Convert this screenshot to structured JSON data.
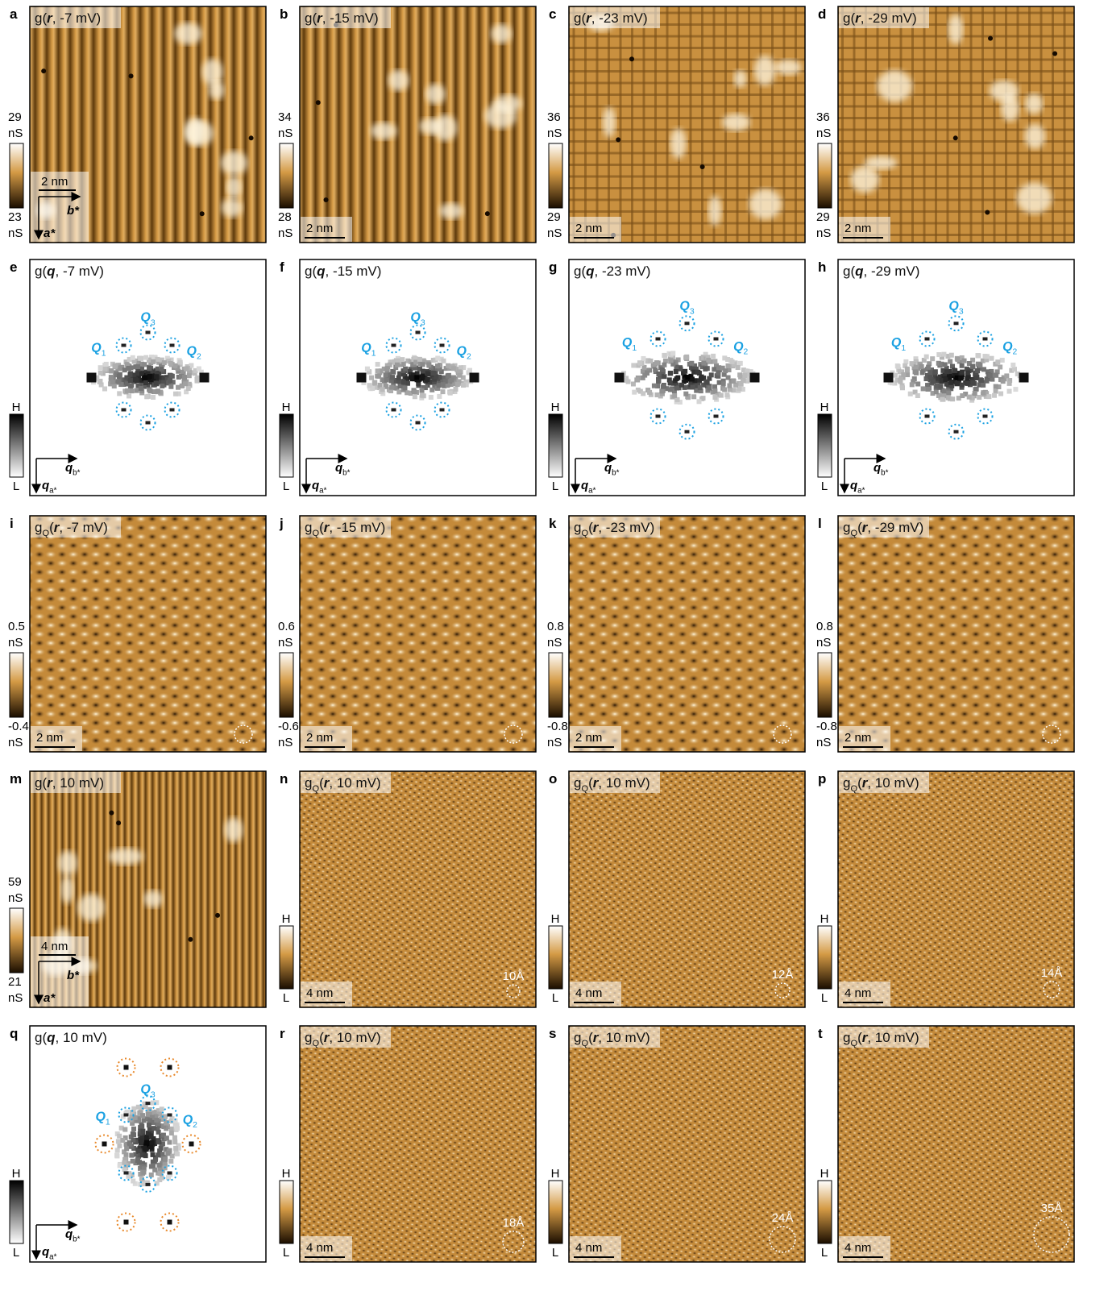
{
  "panels": [
    {
      "letter": "a",
      "kind": "topo-stripes",
      "title": [
        {
          "text": "g("
        },
        {
          "text": "r",
          "style": "var"
        },
        {
          "text": ", -7 mV)"
        }
      ],
      "colorbar": {
        "top": "29",
        "top_unit": "nS",
        "bottom": "23",
        "bottom_unit": "nS"
      },
      "scalebar": "2 nm",
      "axes": {
        "h": [
          {
            "text": "b*",
            "style": "var"
          }
        ],
        "v": [
          {
            "text": "a*",
            "style": "var"
          }
        ]
      }
    },
    {
      "letter": "b",
      "kind": "topo-stripes",
      "title": [
        {
          "text": "g("
        },
        {
          "text": "r",
          "style": "var"
        },
        {
          "text": ", -15 mV)"
        }
      ],
      "colorbar": {
        "top": "34",
        "top_unit": "nS",
        "bottom": "28",
        "bottom_unit": "nS"
      },
      "scalebar": "2 nm"
    },
    {
      "letter": "c",
      "kind": "topo-grid",
      "title": [
        {
          "text": "g("
        },
        {
          "text": "r",
          "style": "var"
        },
        {
          "text": ", -23 mV)"
        }
      ],
      "colorbar": {
        "top": "36",
        "top_unit": "nS",
        "bottom": "29",
        "bottom_unit": "nS"
      },
      "scalebar": "2 nm"
    },
    {
      "letter": "d",
      "kind": "topo-grid",
      "title": [
        {
          "text": "g("
        },
        {
          "text": "r",
          "style": "var"
        },
        {
          "text": ", -29 mV)"
        }
      ],
      "colorbar": {
        "top": "36",
        "top_unit": "nS",
        "bottom": "29",
        "bottom_unit": "nS"
      },
      "scalebar": "2 nm"
    },
    {
      "letter": "e",
      "kind": "fft",
      "title": [
        {
          "text": "g("
        },
        {
          "text": "q",
          "style": "var"
        },
        {
          "text": ", -7 mV)"
        }
      ],
      "colorbar": {
        "top": "H",
        "bottom": "L"
      },
      "axes": {
        "h": [
          {
            "text": "q",
            "style": "var"
          },
          {
            "text": "b*",
            "style": "sub"
          }
        ],
        "v": [
          {
            "text": "q",
            "style": "var"
          },
          {
            "text": "a*",
            "style": "sub"
          }
        ]
      },
      "q_labels": [
        [
          {
            "text": "Q",
            "style": "var"
          },
          {
            "text": "1",
            "style": "sub"
          }
        ],
        [
          {
            "text": "Q",
            "style": "var"
          },
          {
            "text": "2",
            "style": "sub"
          }
        ],
        [
          {
            "text": "Q",
            "style": "var"
          },
          {
            "text": "3",
            "style": "sub"
          }
        ]
      ]
    },
    {
      "letter": "f",
      "kind": "fft",
      "title": [
        {
          "text": "g("
        },
        {
          "text": "q",
          "style": "var"
        },
        {
          "text": ", -15 mV)"
        }
      ],
      "colorbar": {
        "top": "H",
        "bottom": "L"
      },
      "axes": {
        "h": [
          {
            "text": "q",
            "style": "var"
          },
          {
            "text": "b*",
            "style": "sub"
          }
        ],
        "v": [
          {
            "text": "q",
            "style": "var"
          },
          {
            "text": "a*",
            "style": "sub"
          }
        ]
      },
      "q_labels": [
        [
          {
            "text": "Q",
            "style": "var"
          },
          {
            "text": "1",
            "style": "sub"
          }
        ],
        [
          {
            "text": "Q",
            "style": "var"
          },
          {
            "text": "2",
            "style": "sub"
          }
        ],
        [
          {
            "text": "Q",
            "style": "var"
          },
          {
            "text": "3",
            "style": "sub"
          }
        ]
      ]
    },
    {
      "letter": "g",
      "kind": "fft",
      "title": [
        {
          "text": "g("
        },
        {
          "text": "q",
          "style": "var"
        },
        {
          "text": ", -23 mV)"
        }
      ],
      "colorbar": {
        "top": "H",
        "bottom": "L"
      },
      "axes": {
        "h": [
          {
            "text": "q",
            "style": "var"
          },
          {
            "text": "b*",
            "style": "sub"
          }
        ],
        "v": [
          {
            "text": "q",
            "style": "var"
          },
          {
            "text": "a*",
            "style": "sub"
          }
        ]
      },
      "q_labels": [
        [
          {
            "text": "Q",
            "style": "var"
          },
          {
            "text": "1",
            "style": "sub"
          }
        ],
        [
          {
            "text": "Q",
            "style": "var"
          },
          {
            "text": "2",
            "style": "sub"
          }
        ],
        [
          {
            "text": "Q",
            "style": "var"
          },
          {
            "text": "3",
            "style": "sub"
          }
        ]
      ]
    },
    {
      "letter": "h",
      "kind": "fft",
      "title": [
        {
          "text": "g("
        },
        {
          "text": "q",
          "style": "var"
        },
        {
          "text": ", -29 mV)"
        }
      ],
      "colorbar": {
        "top": "H",
        "bottom": "L"
      },
      "axes": {
        "h": [
          {
            "text": "q",
            "style": "var"
          },
          {
            "text": "b*",
            "style": "sub"
          }
        ],
        "v": [
          {
            "text": "q",
            "style": "var"
          },
          {
            "text": "a*",
            "style": "sub"
          }
        ]
      },
      "q_labels": [
        [
          {
            "text": "Q",
            "style": "var"
          },
          {
            "text": "1",
            "style": "sub"
          }
        ],
        [
          {
            "text": "Q",
            "style": "var"
          },
          {
            "text": "2",
            "style": "sub"
          }
        ],
        [
          {
            "text": "Q",
            "style": "var"
          },
          {
            "text": "3",
            "style": "sub"
          }
        ]
      ]
    },
    {
      "letter": "i",
      "kind": "filtered",
      "title": [
        {
          "text": "g"
        },
        {
          "text": "Q",
          "style": "sub"
        },
        {
          "text": "("
        },
        {
          "text": "r",
          "style": "var"
        },
        {
          "text": ", -7 mV)"
        }
      ],
      "colorbar": {
        "top": "0.5",
        "top_unit": "nS",
        "bottom": "-0.4",
        "bottom_unit": "nS"
      },
      "scalebar": "2 nm"
    },
    {
      "letter": "j",
      "kind": "filtered",
      "title": [
        {
          "text": "g"
        },
        {
          "text": "Q",
          "style": "sub"
        },
        {
          "text": "("
        },
        {
          "text": "r",
          "style": "var"
        },
        {
          "text": ", -15 mV)"
        }
      ],
      "colorbar": {
        "top": "0.6",
        "top_unit": "nS",
        "bottom": "-0.6",
        "bottom_unit": "nS"
      },
      "scalebar": "2 nm"
    },
    {
      "letter": "k",
      "kind": "filtered",
      "title": [
        {
          "text": "g"
        },
        {
          "text": "Q",
          "style": "sub"
        },
        {
          "text": "("
        },
        {
          "text": "r",
          "style": "var"
        },
        {
          "text": ", -23 mV)"
        }
      ],
      "colorbar": {
        "top": "0.8",
        "top_unit": "nS",
        "bottom": "-0.8",
        "bottom_unit": "nS"
      },
      "scalebar": "2 nm"
    },
    {
      "letter": "l",
      "kind": "filtered",
      "title": [
        {
          "text": "g"
        },
        {
          "text": "Q",
          "style": "sub"
        },
        {
          "text": "("
        },
        {
          "text": "r",
          "style": "var"
        },
        {
          "text": ", -29 mV)"
        }
      ],
      "colorbar": {
        "top": "0.8",
        "top_unit": "nS",
        "bottom": "-0.8",
        "bottom_unit": "nS"
      },
      "scalebar": "2 nm"
    },
    {
      "letter": "m",
      "kind": "topo-fine",
      "title": [
        {
          "text": "g("
        },
        {
          "text": "r",
          "style": "var"
        },
        {
          "text": ", 10 mV)"
        }
      ],
      "colorbar": {
        "top": "59",
        "top_unit": "nS",
        "bottom": "21",
        "bottom_unit": "nS"
      },
      "scalebar": "4 nm",
      "axes": {
        "h": [
          {
            "text": "b*",
            "style": "var"
          }
        ],
        "v": [
          {
            "text": "a*",
            "style": "var"
          }
        ]
      }
    },
    {
      "letter": "n",
      "kind": "filtered-fine",
      "title": [
        {
          "text": "g"
        },
        {
          "text": "Q",
          "style": "sub"
        },
        {
          "text": "("
        },
        {
          "text": "r",
          "style": "var"
        },
        {
          "text": ", 10 mV)"
        }
      ],
      "colorbar": {
        "top": "H",
        "bottom": "L"
      },
      "scalebar": "4 nm",
      "annotation": "10Å"
    },
    {
      "letter": "o",
      "kind": "filtered-fine",
      "title": [
        {
          "text": "g"
        },
        {
          "text": "Q",
          "style": "sub"
        },
        {
          "text": "("
        },
        {
          "text": "r",
          "style": "var"
        },
        {
          "text": ", 10 mV)"
        }
      ],
      "colorbar": {
        "top": "H",
        "bottom": "L"
      },
      "scalebar": "4 nm",
      "annotation": "12Å"
    },
    {
      "letter": "p",
      "kind": "filtered-fine",
      "title": [
        {
          "text": "g"
        },
        {
          "text": "Q",
          "style": "sub"
        },
        {
          "text": "("
        },
        {
          "text": "r",
          "style": "var"
        },
        {
          "text": ", 10 mV)"
        }
      ],
      "colorbar": {
        "top": "H",
        "bottom": "L"
      },
      "scalebar": "4 nm",
      "annotation": "14Å"
    },
    {
      "letter": "q",
      "kind": "fft-wide",
      "title": [
        {
          "text": "g("
        },
        {
          "text": "q",
          "style": "var"
        },
        {
          "text": ", 10 mV)"
        }
      ],
      "colorbar": {
        "top": "H",
        "bottom": "L"
      },
      "axes": {
        "h": [
          {
            "text": "q",
            "style": "var"
          },
          {
            "text": "b*",
            "style": "sub"
          }
        ],
        "v": [
          {
            "text": "q",
            "style": "var"
          },
          {
            "text": "a*",
            "style": "sub"
          }
        ]
      },
      "q_labels": [
        [
          {
            "text": "Q",
            "style": "var"
          },
          {
            "text": "1",
            "style": "sub"
          }
        ],
        [
          {
            "text": "Q",
            "style": "var"
          },
          {
            "text": "2",
            "style": "sub"
          }
        ],
        [
          {
            "text": "Q",
            "style": "var"
          },
          {
            "text": "3",
            "style": "sub"
          }
        ]
      ]
    },
    {
      "letter": "r",
      "kind": "filtered-fine",
      "title": [
        {
          "text": "g"
        },
        {
          "text": "Q",
          "style": "sub"
        },
        {
          "text": "("
        },
        {
          "text": "r",
          "style": "var"
        },
        {
          "text": ", 10 mV)"
        }
      ],
      "colorbar": {
        "top": "H",
        "bottom": "L"
      },
      "scalebar": "4 nm",
      "annotation": "18Å"
    },
    {
      "letter": "s",
      "kind": "filtered-fine",
      "title": [
        {
          "text": "g"
        },
        {
          "text": "Q",
          "style": "sub"
        },
        {
          "text": "("
        },
        {
          "text": "r",
          "style": "var"
        },
        {
          "text": ", 10 mV)"
        }
      ],
      "colorbar": {
        "top": "H",
        "bottom": "L"
      },
      "scalebar": "4 nm",
      "annotation": "24Å"
    },
    {
      "letter": "t",
      "kind": "filtered-fine",
      "title": [
        {
          "text": "g"
        },
        {
          "text": "Q",
          "style": "sub"
        },
        {
          "text": "("
        },
        {
          "text": "r",
          "style": "var"
        },
        {
          "text": ", 10 mV)"
        }
      ],
      "colorbar": {
        "top": "H",
        "bottom": "L"
      },
      "scalebar": "4 nm",
      "annotation": "35Å"
    }
  ],
  "q_color": "#1ba1e2",
  "ring_color": "#e8892b"
}
